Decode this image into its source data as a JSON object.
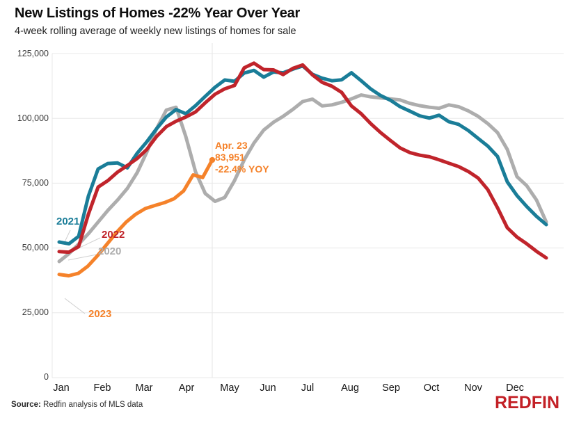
{
  "header": {
    "title": "New Listings of Homes -22% Year Over Year",
    "subtitle": "4-week rolling average of weekly new listings of homes for sale"
  },
  "colors": {
    "teal_2021": "#1A7D98",
    "red_2022": "#C0242B",
    "gray_2020": "#ADADAD",
    "orange_2023": "#F5822A",
    "gridline": "#e8e8e8",
    "leader_line": "#cfcfcf",
    "logo_red": "#C32026"
  },
  "chart_data": {
    "type": "line",
    "title": "New Listings of Homes -22% Year Over Year",
    "subtitle": "4-week rolling average of weekly new listings of homes for sale",
    "grid": "horizontal",
    "x_axis": {
      "labels": [
        "Jan",
        "Feb",
        "Mar",
        "Apr",
        "May",
        "Jun",
        "Jul",
        "Aug",
        "Sep",
        "Oct",
        "Nov",
        "Dec"
      ]
    },
    "y_axis": {
      "range": [
        0,
        125000
      ],
      "tick_values": [
        0,
        25000,
        50000,
        75000,
        100000,
        125000
      ],
      "ticks": [
        "0",
        "25,000",
        "50,000",
        "75,000",
        "100,000",
        "125,000"
      ]
    },
    "series": [
      {
        "name": "2020",
        "color": "#ADADAD",
        "cadence": "weekly",
        "values": [
          44800,
          47800,
          51500,
          55500,
          60000,
          64500,
          68500,
          73000,
          79000,
          87000,
          96000,
          103200,
          104300,
          93000,
          79400,
          71000,
          68000,
          69500,
          76000,
          84000,
          90500,
          95500,
          98500,
          100800,
          103500,
          106500,
          107400,
          104800,
          105200,
          106200,
          107500,
          109000,
          108300,
          107900,
          107500,
          107100,
          105800,
          104900,
          104300,
          103900,
          105200,
          104500,
          102900,
          100800,
          98000,
          94500,
          88000,
          77500,
          74000,
          68500,
          60000
        ]
      },
      {
        "name": "2021",
        "color": "#1A7D98",
        "cadence": "weekly",
        "values": [
          52300,
          51600,
          54500,
          70000,
          80500,
          82600,
          82800,
          80900,
          86500,
          91000,
          96000,
          100500,
          103400,
          101800,
          104900,
          108500,
          112000,
          114800,
          114300,
          117500,
          118500,
          115900,
          117900,
          117600,
          119000,
          120200,
          117000,
          115500,
          114500,
          114900,
          117600,
          114500,
          111300,
          108800,
          107000,
          104500,
          102800,
          101000,
          100100,
          101200,
          98700,
          97700,
          95300,
          92300,
          89300,
          85300,
          75500,
          70200,
          66000,
          62200,
          59000
        ]
      },
      {
        "name": "2022",
        "color": "#C0242B",
        "cadence": "weekly",
        "values": [
          48600,
          48400,
          50500,
          63000,
          73500,
          76000,
          79300,
          81800,
          84500,
          88000,
          93000,
          96800,
          98900,
          100500,
          102500,
          106000,
          109300,
          111400,
          112700,
          119500,
          121300,
          118800,
          118700,
          116900,
          119300,
          120600,
          116800,
          113900,
          112400,
          110000,
          104800,
          101800,
          97900,
          94500,
          91500,
          88600,
          86800,
          85800,
          85200,
          84000,
          82700,
          81400,
          79500,
          77000,
          72500,
          65500,
          57800,
          54200,
          51600,
          48700,
          46200
        ]
      },
      {
        "name": "2023",
        "color": "#F5822A",
        "cadence": "weekly",
        "last_point": {
          "date": "Apr. 23",
          "value": 83951,
          "yoy": "-22.4% YOY"
        },
        "values": [
          39800,
          39300,
          40200,
          43000,
          47000,
          51500,
          56000,
          60000,
          63000,
          65200,
          66400,
          67500,
          69000,
          72000,
          78200,
          77200,
          83951
        ]
      }
    ],
    "annotation": {
      "line1": "Apr. 23",
      "line2": "83,951",
      "line3": "-22.4% YOY"
    },
    "legend_position": "inline-labels"
  },
  "footer": {
    "source_label": "Source:",
    "source_text": " Redfin analysis of MLS data",
    "logo": "REDFIN"
  }
}
